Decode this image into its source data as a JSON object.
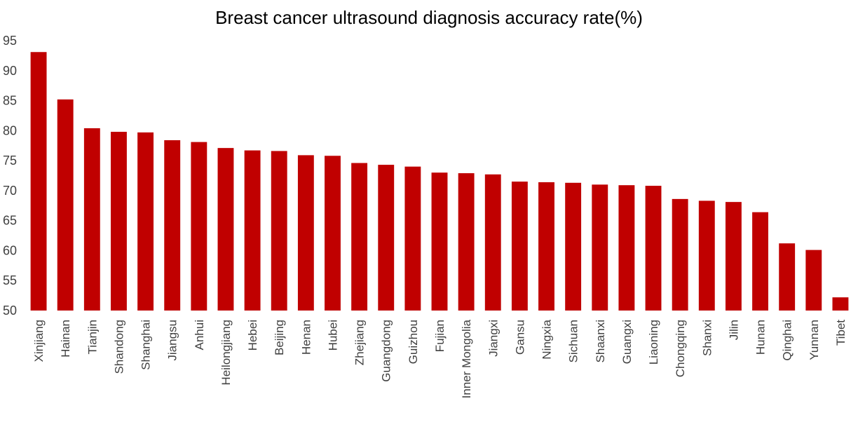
{
  "chart_data": {
    "type": "bar",
    "title": "Breast cancer ultrasound diagnosis accuracy rate(%)",
    "xlabel": "",
    "ylabel": "",
    "ylim": [
      50,
      95
    ],
    "yticks": [
      50,
      55,
      60,
      65,
      70,
      75,
      80,
      85,
      90,
      95
    ],
    "grid": false,
    "legend": "none",
    "bar_color": "#C00000",
    "categories": [
      "Xinjiang",
      "Hainan",
      "Tianjin",
      "Shandong",
      "Shanghai",
      "Jiangsu",
      "Anhui",
      "Heilongjiang",
      "Hebei",
      "Beijing",
      "Henan",
      "Hubei",
      "Zhejiang",
      "Guangdong",
      "Guizhou",
      "Fujian",
      "Inner Mongolia",
      "Jiangxi",
      "Gansu",
      "Ningxia",
      "Sichuan",
      "Shaanxi",
      "Guangxi",
      "Liaoning",
      "Chongqing",
      "Shanxi",
      "Jilin",
      "Hunan",
      "Qinghai",
      "Yunnan",
      "Tibet"
    ],
    "values": [
      93.1,
      85.2,
      80.4,
      79.8,
      79.7,
      78.4,
      78.1,
      77.1,
      76.7,
      76.6,
      75.9,
      75.8,
      74.6,
      74.3,
      74.0,
      73.0,
      72.9,
      72.7,
      71.5,
      71.4,
      71.3,
      71.0,
      70.9,
      70.8,
      68.6,
      68.3,
      68.1,
      66.4,
      61.2,
      60.1,
      52.2
    ]
  }
}
